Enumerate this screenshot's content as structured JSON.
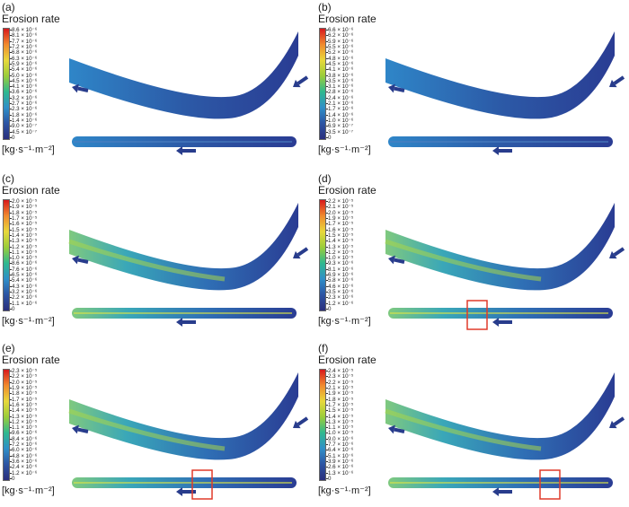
{
  "common": {
    "colorbar_title": "Erosion rate",
    "unit_label": "[kg·s⁻¹·m⁻²]",
    "colormap": [
      "#d7191c",
      "#f08a2e",
      "#e8d83b",
      "#9acd3a",
      "#2fb88f",
      "#2f8fc8",
      "#2c54a3",
      "#2a2e7c"
    ],
    "arrow_color": "#283c8c",
    "highlight_box_color": "#e03a2a"
  },
  "panels": [
    {
      "label": "(a)",
      "ticks": [
        "8.6 × 10⁻⁶",
        "8.1 × 10⁻⁶",
        "7.7 × 10⁻⁶",
        "7.2 × 10⁻⁶",
        "6.8 × 10⁻⁶",
        "6.3 × 10⁻⁶",
        "5.9 × 10⁻⁶",
        "5.4 × 10⁻⁶",
        "5.0 × 10⁻⁶",
        "4.5 × 10⁻⁶",
        "4.1 × 10⁻⁶",
        "3.6 × 10⁻⁶",
        "3.2 × 10⁻⁶",
        "2.7 × 10⁻⁶",
        "2.3 × 10⁻⁶",
        "1.8 × 10⁻⁶",
        "1.4 × 10⁻⁶",
        "9.0 × 10⁻⁷",
        "4.5 × 10⁻⁷",
        "0"
      ],
      "highlight": false
    },
    {
      "label": "(b)",
      "ticks": [
        "6.6 × 10⁻⁶",
        "6.2 × 10⁻⁶",
        "5.9 × 10⁻⁶",
        "5.5 × 10⁻⁶",
        "5.2 × 10⁻⁶",
        "4.8 × 10⁻⁶",
        "4.5 × 10⁻⁶",
        "4.1 × 10⁻⁶",
        "3.8 × 10⁻⁶",
        "3.5 × 10⁻⁶",
        "3.1 × 10⁻⁶",
        "2.8 × 10⁻⁶",
        "2.4 × 10⁻⁶",
        "2.1 × 10⁻⁶",
        "1.7 × 10⁻⁶",
        "1.4 × 10⁻⁶",
        "1.0 × 10⁻⁶",
        "6.9 × 10⁻⁷",
        "3.5 × 10⁻⁷",
        "0"
      ],
      "highlight": false
    },
    {
      "label": "(c)",
      "ticks": [
        "2.0 × 10⁻⁵",
        "1.9 × 10⁻⁵",
        "1.8 × 10⁻⁵",
        "1.7 × 10⁻⁵",
        "1.6 × 10⁻⁵",
        "1.5 × 10⁻⁵",
        "1.4 × 10⁻⁵",
        "1.3 × 10⁻⁵",
        "1.2 × 10⁻⁵",
        "1.1 × 10⁻⁵",
        "1.0 × 10⁻⁵",
        "8.6 × 10⁻⁶",
        "7.6 × 10⁻⁶",
        "6.5 × 10⁻⁶",
        "5.4 × 10⁻⁶",
        "4.3 × 10⁻⁶",
        "3.2 × 10⁻⁶",
        "2.2 × 10⁻⁶",
        "1.1 × 10⁻⁶",
        "0"
      ],
      "highlight": false
    },
    {
      "label": "(d)",
      "ticks": [
        "2.2 × 10⁻⁵",
        "2.1 × 10⁻⁵",
        "2.0 × 10⁻⁵",
        "1.9 × 10⁻⁵",
        "1.7 × 10⁻⁵",
        "1.6 × 10⁻⁵",
        "1.5 × 10⁻⁵",
        "1.4 × 10⁻⁵",
        "1.3 × 10⁻⁵",
        "1.2 × 10⁻⁵",
        "1.0 × 10⁻⁵",
        "9.3 × 10⁻⁶",
        "8.1 × 10⁻⁶",
        "6.9 × 10⁻⁶",
        "5.8 × 10⁻⁶",
        "4.6 × 10⁻⁶",
        "3.5 × 10⁻⁶",
        "2.3 × 10⁻⁶",
        "1.2 × 10⁻⁶",
        "0"
      ],
      "highlight": true
    },
    {
      "label": "(e)",
      "ticks": [
        "2.3 × 10⁻⁵",
        "2.2 × 10⁻⁵",
        "2.0 × 10⁻⁵",
        "1.9 × 10⁻⁵",
        "1.8 × 10⁻⁵",
        "1.7 × 10⁻⁵",
        "1.6 × 10⁻⁵",
        "1.4 × 10⁻⁵",
        "1.3 × 10⁻⁵",
        "1.2 × 10⁻⁵",
        "1.1 × 10⁻⁵",
        "9.6 × 10⁻⁶",
        "8.4 × 10⁻⁶",
        "7.2 × 10⁻⁶",
        "6.0 × 10⁻⁶",
        "4.8 × 10⁻⁶",
        "3.6 × 10⁻⁶",
        "2.4 × 10⁻⁶",
        "1.2 × 10⁻⁶",
        "0"
      ],
      "highlight": true
    },
    {
      "label": "(f)",
      "ticks": [
        "2.4 × 10⁻⁵",
        "2.3 × 10⁻⁵",
        "2.2 × 10⁻⁵",
        "2.1 × 10⁻⁵",
        "1.9 × 10⁻⁵",
        "1.8 × 10⁻⁵",
        "1.7 × 10⁻⁵",
        "1.5 × 10⁻⁵",
        "1.4 × 10⁻⁵",
        "1.3 × 10⁻⁵",
        "1.1 × 10⁻⁵",
        "1.0 × 10⁻⁵",
        "9.0 × 10⁻⁶",
        "7.7 × 10⁻⁶",
        "6.4 × 10⁻⁶",
        "5.1 × 10⁻⁶",
        "3.9 × 10⁻⁶",
        "2.6 × 10⁻⁶",
        "1.3 × 10⁻⁶",
        "0"
      ],
      "highlight": true
    }
  ]
}
